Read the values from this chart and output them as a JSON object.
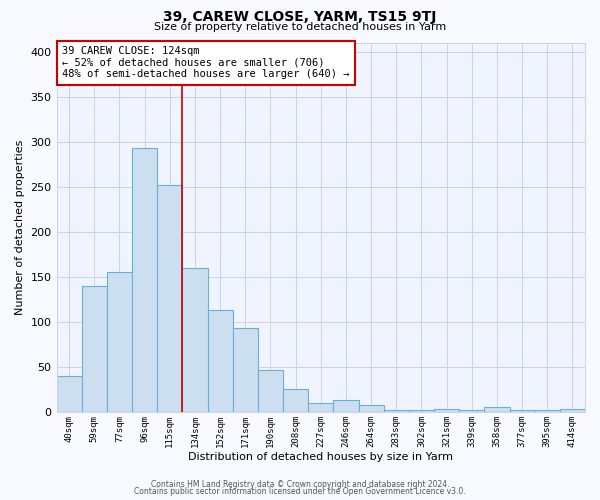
{
  "title": "39, CAREW CLOSE, YARM, TS15 9TJ",
  "subtitle": "Size of property relative to detached houses in Yarm",
  "xlabel": "Distribution of detached houses by size in Yarm",
  "ylabel": "Number of detached properties",
  "bar_labels": [
    "40sqm",
    "59sqm",
    "77sqm",
    "96sqm",
    "115sqm",
    "134sqm",
    "152sqm",
    "171sqm",
    "190sqm",
    "208sqm",
    "227sqm",
    "246sqm",
    "264sqm",
    "283sqm",
    "302sqm",
    "321sqm",
    "339sqm",
    "358sqm",
    "377sqm",
    "395sqm",
    "414sqm"
  ],
  "bar_values": [
    40,
    140,
    155,
    293,
    252,
    160,
    113,
    93,
    46,
    25,
    10,
    13,
    8,
    2,
    2,
    3,
    2,
    5,
    2,
    2,
    3
  ],
  "bar_color": "#ccdff0",
  "bar_edge_color": "#6aafd6",
  "property_line_label": "39 CAREW CLOSE: 124sqm",
  "smaller_pct": 52,
  "smaller_count": 706,
  "larger_pct": 48,
  "larger_count": 640,
  "annotation_box_color": "#ffffff",
  "annotation_box_edge": "#cc0000",
  "property_line_color": "#cc0000",
  "ylim": [
    0,
    410
  ],
  "yticks": [
    0,
    50,
    100,
    150,
    200,
    250,
    300,
    350,
    400
  ],
  "footer1": "Contains HM Land Registry data © Crown copyright and database right 2024.",
  "footer2": "Contains public sector information licensed under the Open Government Licence v3.0.",
  "background_color": "#f8f9ff",
  "plot_bg_color": "#f0f4ff",
  "grid_color": "#c8d4e8"
}
